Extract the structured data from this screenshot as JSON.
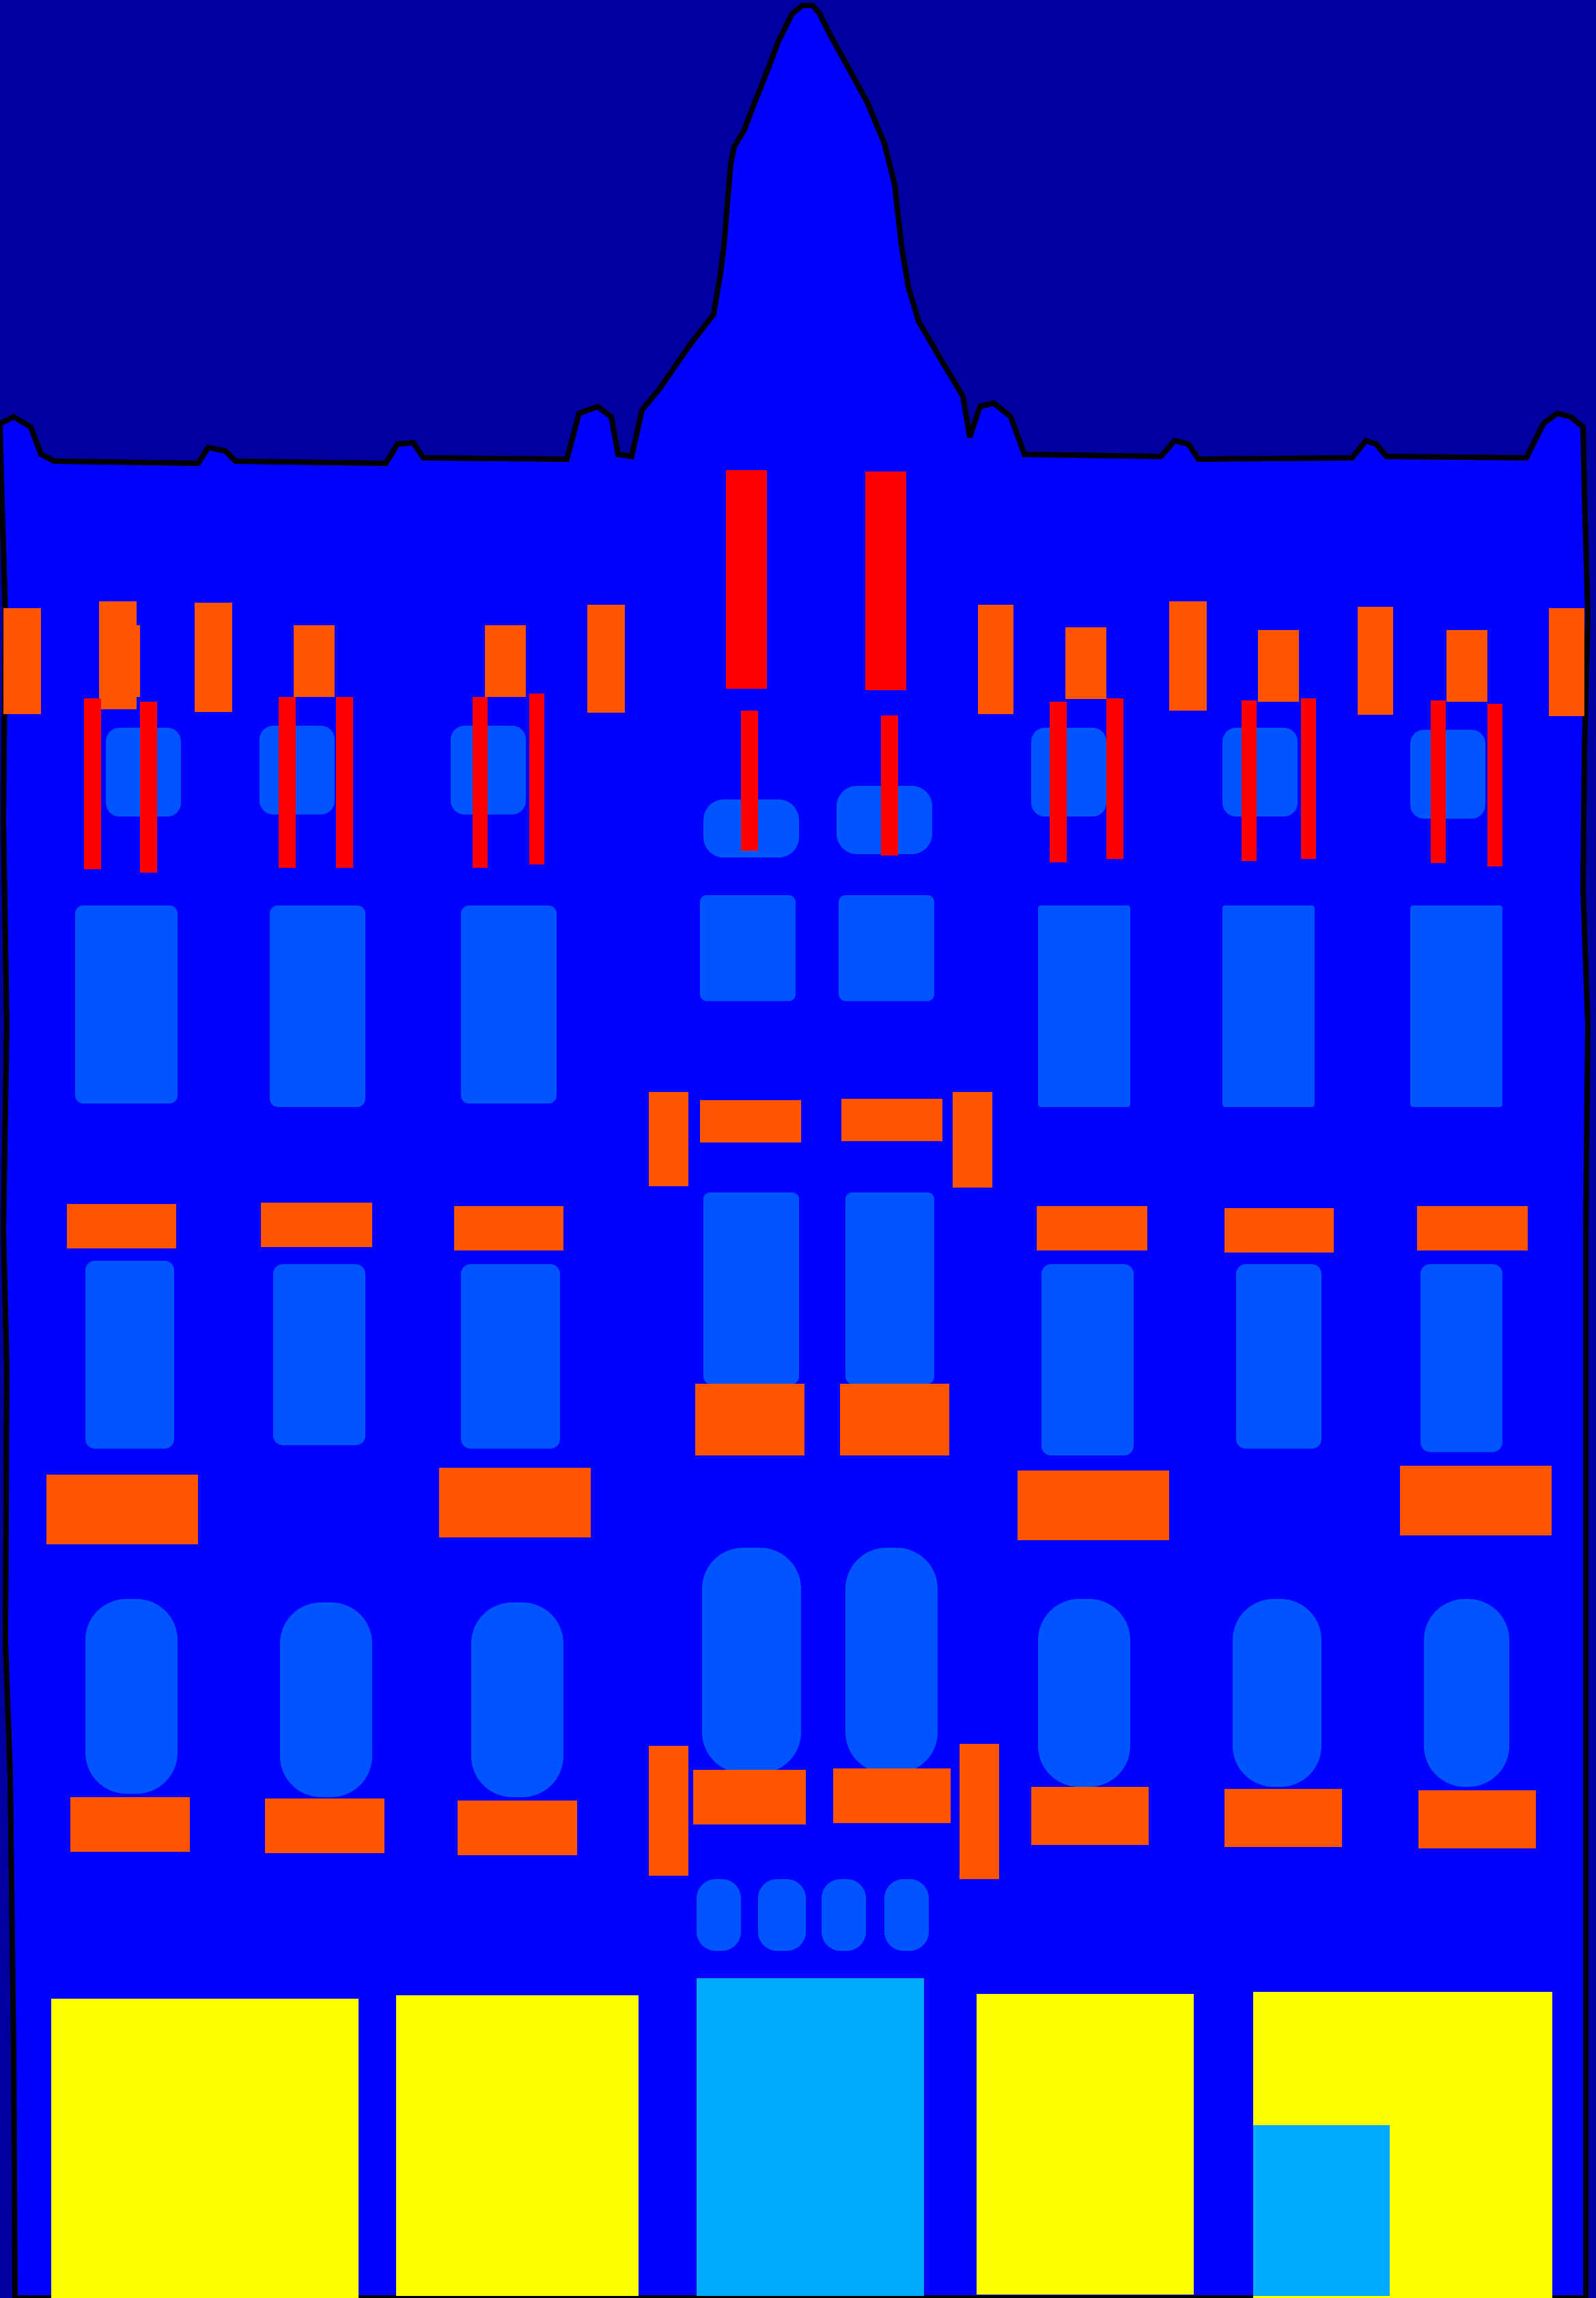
{
  "legend": {
    "sky": "#0000a0",
    "facade": "#0000ff",
    "window": "#0055ff",
    "sill": "#ff5500",
    "pillar": "#ff0000",
    "shop": "#ffff00",
    "door": "#00aaff",
    "outline": "#000000"
  }
}
